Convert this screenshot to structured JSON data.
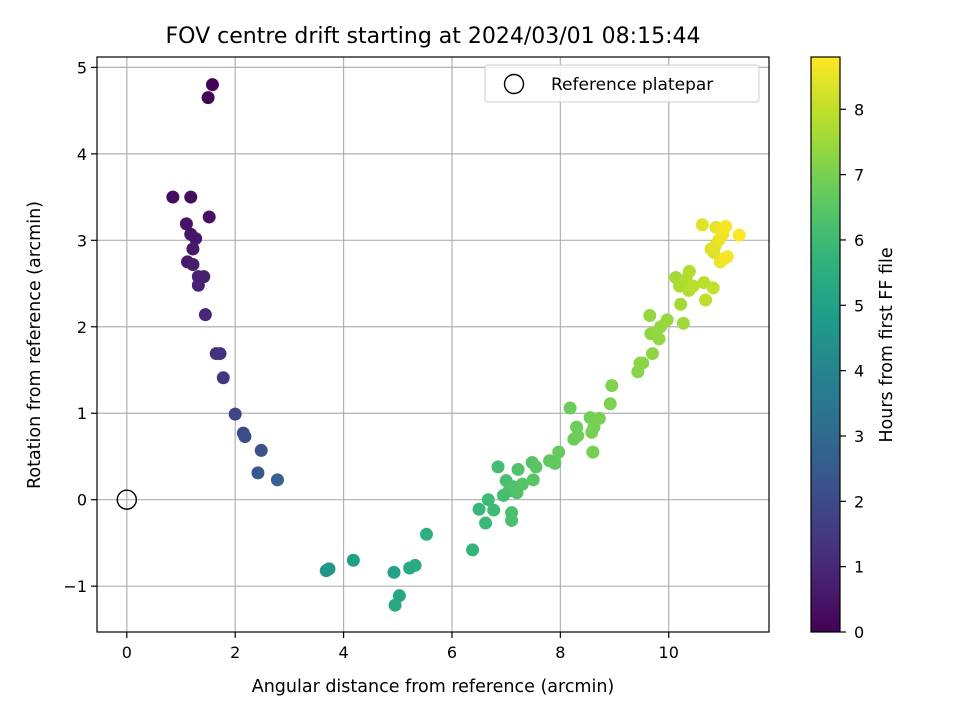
{
  "chart_data": {
    "type": "scatter",
    "title": "FOV centre drift starting at 2024/03/01 08:15:44",
    "xlabel": "Angular distance from reference (arcmin)",
    "ylabel": "Rotation from reference (arcmin)",
    "colorbar_label": "Hours from first FF file",
    "xlim": [
      -0.55,
      11.85
    ],
    "ylim": [
      -1.53,
      5.12
    ],
    "x_ticks": [
      0,
      2,
      4,
      6,
      8,
      10
    ],
    "y_ticks": [
      -1,
      0,
      1,
      2,
      3,
      4,
      5
    ],
    "colorbar_ticks": [
      0,
      1,
      2,
      3,
      4,
      5,
      6,
      7,
      8
    ],
    "colorbar_range": [
      0,
      8.8
    ],
    "colormap": "viridis",
    "grid": true,
    "legend_position": "upper right",
    "reference": {
      "x": 0,
      "y": 0,
      "label": "Reference platepar"
    },
    "points": [
      {
        "x": 1.58,
        "y": 4.8,
        "c": 0.05
      },
      {
        "x": 1.5,
        "y": 4.65,
        "c": 0.1
      },
      {
        "x": 0.85,
        "y": 3.5,
        "c": 0.3
      },
      {
        "x": 1.18,
        "y": 3.5,
        "c": 0.35
      },
      {
        "x": 1.52,
        "y": 3.27,
        "c": 0.4
      },
      {
        "x": 1.1,
        "y": 3.19,
        "c": 0.45
      },
      {
        "x": 1.18,
        "y": 3.07,
        "c": 0.5
      },
      {
        "x": 1.27,
        "y": 3.02,
        "c": 0.55
      },
      {
        "x": 1.22,
        "y": 2.9,
        "c": 0.6
      },
      {
        "x": 1.12,
        "y": 2.75,
        "c": 0.65
      },
      {
        "x": 1.22,
        "y": 2.72,
        "c": 0.7
      },
      {
        "x": 1.32,
        "y": 2.58,
        "c": 0.75
      },
      {
        "x": 1.42,
        "y": 2.58,
        "c": 0.8
      },
      {
        "x": 1.32,
        "y": 2.48,
        "c": 0.85
      },
      {
        "x": 1.45,
        "y": 2.14,
        "c": 0.95
      },
      {
        "x": 1.65,
        "y": 1.69,
        "c": 1.2
      },
      {
        "x": 1.72,
        "y": 1.69,
        "c": 1.25
      },
      {
        "x": 1.78,
        "y": 1.41,
        "c": 1.4
      },
      {
        "x": 2.0,
        "y": 0.99,
        "c": 1.8
      },
      {
        "x": 2.15,
        "y": 0.77,
        "c": 2.0
      },
      {
        "x": 2.18,
        "y": 0.73,
        "c": 2.1
      },
      {
        "x": 2.48,
        "y": 0.57,
        "c": 2.3
      },
      {
        "x": 2.42,
        "y": 0.31,
        "c": 2.5
      },
      {
        "x": 2.78,
        "y": 0.23,
        "c": 2.7
      },
      {
        "x": 3.68,
        "y": -0.82,
        "c": 4.6
      },
      {
        "x": 3.73,
        "y": -0.8,
        "c": 4.65
      },
      {
        "x": 4.18,
        "y": -0.7,
        "c": 4.9
      },
      {
        "x": 4.93,
        "y": -0.84,
        "c": 5.1
      },
      {
        "x": 5.03,
        "y": -1.11,
        "c": 5.2
      },
      {
        "x": 4.95,
        "y": -1.22,
        "c": 5.25
      },
      {
        "x": 5.22,
        "y": -0.79,
        "c": 5.35
      },
      {
        "x": 5.32,
        "y": -0.76,
        "c": 5.4
      },
      {
        "x": 5.53,
        "y": -0.4,
        "c": 5.55
      },
      {
        "x": 6.38,
        "y": -0.58,
        "c": 5.75
      },
      {
        "x": 6.5,
        "y": -0.11,
        "c": 5.9
      },
      {
        "x": 6.62,
        "y": -0.27,
        "c": 5.95
      },
      {
        "x": 6.67,
        "y": 0.0,
        "c": 6.0
      },
      {
        "x": 6.77,
        "y": -0.12,
        "c": 6.05
      },
      {
        "x": 6.85,
        "y": 0.38,
        "c": 6.1
      },
      {
        "x": 6.95,
        "y": 0.05,
        "c": 6.15
      },
      {
        "x": 7.0,
        "y": 0.22,
        "c": 6.2
      },
      {
        "x": 7.05,
        "y": 0.1,
        "c": 6.2
      },
      {
        "x": 7.1,
        "y": -0.15,
        "c": 6.25
      },
      {
        "x": 7.1,
        "y": -0.24,
        "c": 6.25
      },
      {
        "x": 7.13,
        "y": 0.15,
        "c": 6.3
      },
      {
        "x": 7.2,
        "y": 0.08,
        "c": 6.35
      },
      {
        "x": 7.22,
        "y": 0.35,
        "c": 6.35
      },
      {
        "x": 7.3,
        "y": 0.18,
        "c": 6.4
      },
      {
        "x": 7.48,
        "y": 0.43,
        "c": 6.45
      },
      {
        "x": 7.5,
        "y": 0.23,
        "c": 6.5
      },
      {
        "x": 7.55,
        "y": 0.38,
        "c": 6.5
      },
      {
        "x": 7.8,
        "y": 0.45,
        "c": 6.6
      },
      {
        "x": 7.9,
        "y": 0.42,
        "c": 6.65
      },
      {
        "x": 7.97,
        "y": 0.55,
        "c": 6.7
      },
      {
        "x": 8.18,
        "y": 1.06,
        "c": 6.8
      },
      {
        "x": 8.25,
        "y": 0.7,
        "c": 6.8
      },
      {
        "x": 8.3,
        "y": 0.84,
        "c": 6.85
      },
      {
        "x": 8.32,
        "y": 0.74,
        "c": 6.85
      },
      {
        "x": 8.55,
        "y": 0.95,
        "c": 6.9
      },
      {
        "x": 8.58,
        "y": 0.78,
        "c": 6.95
      },
      {
        "x": 8.6,
        "y": 0.55,
        "c": 6.95
      },
      {
        "x": 8.62,
        "y": 0.84,
        "c": 7.0
      },
      {
        "x": 8.72,
        "y": 0.94,
        "c": 7.0
      },
      {
        "x": 8.92,
        "y": 1.11,
        "c": 7.05
      },
      {
        "x": 8.95,
        "y": 1.32,
        "c": 7.1
      },
      {
        "x": 9.43,
        "y": 1.48,
        "c": 7.2
      },
      {
        "x": 9.47,
        "y": 1.58,
        "c": 7.25
      },
      {
        "x": 9.52,
        "y": 1.58,
        "c": 7.25
      },
      {
        "x": 9.7,
        "y": 1.69,
        "c": 7.3
      },
      {
        "x": 9.67,
        "y": 1.92,
        "c": 7.3
      },
      {
        "x": 9.75,
        "y": 1.93,
        "c": 7.35
      },
      {
        "x": 9.82,
        "y": 1.86,
        "c": 7.35
      },
      {
        "x": 9.85,
        "y": 2.0,
        "c": 7.4
      },
      {
        "x": 9.65,
        "y": 2.13,
        "c": 7.4
      },
      {
        "x": 9.97,
        "y": 2.08,
        "c": 7.45
      },
      {
        "x": 10.13,
        "y": 2.57,
        "c": 7.6
      },
      {
        "x": 10.22,
        "y": 2.26,
        "c": 7.6
      },
      {
        "x": 10.27,
        "y": 2.04,
        "c": 7.55
      },
      {
        "x": 10.2,
        "y": 2.47,
        "c": 7.7
      },
      {
        "x": 10.32,
        "y": 2.55,
        "c": 7.75
      },
      {
        "x": 10.38,
        "y": 2.64,
        "c": 7.8
      },
      {
        "x": 10.37,
        "y": 2.42,
        "c": 7.8
      },
      {
        "x": 10.45,
        "y": 2.47,
        "c": 7.85
      },
      {
        "x": 10.65,
        "y": 2.51,
        "c": 7.9
      },
      {
        "x": 10.68,
        "y": 2.31,
        "c": 7.95
      },
      {
        "x": 10.82,
        "y": 2.45,
        "c": 8.0
      },
      {
        "x": 10.62,
        "y": 3.18,
        "c": 8.4
      },
      {
        "x": 10.78,
        "y": 2.9,
        "c": 8.3
      },
      {
        "x": 10.83,
        "y": 2.86,
        "c": 8.35
      },
      {
        "x": 10.85,
        "y": 2.93,
        "c": 8.4
      },
      {
        "x": 10.87,
        "y": 3.15,
        "c": 8.5
      },
      {
        "x": 10.92,
        "y": 3.0,
        "c": 8.5
      },
      {
        "x": 10.95,
        "y": 2.75,
        "c": 8.55
      },
      {
        "x": 10.98,
        "y": 3.13,
        "c": 8.6
      },
      {
        "x": 11.0,
        "y": 3.07,
        "c": 8.6
      },
      {
        "x": 11.03,
        "y": 2.79,
        "c": 8.65
      },
      {
        "x": 11.05,
        "y": 3.16,
        "c": 8.7
      },
      {
        "x": 11.08,
        "y": 2.81,
        "c": 8.7
      },
      {
        "x": 11.3,
        "y": 3.06,
        "c": 8.8
      }
    ]
  }
}
